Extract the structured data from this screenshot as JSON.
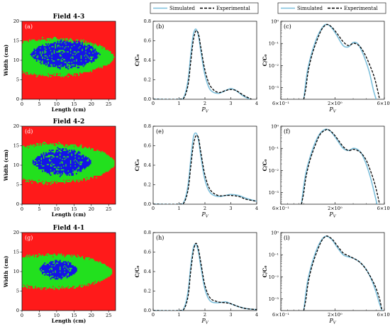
{
  "legend": {
    "simulated": "Simulated",
    "experimental": "Experimental",
    "colors": {
      "simulated": "#7ec0dc",
      "experimental": "#000000"
    }
  },
  "chart_data": [
    {
      "type": "heatmap",
      "panel": "(a)",
      "title": "Field 4-3",
      "xlabel": "Length (cm)",
      "ylabel": "Width (cm)",
      "xlim": [
        0,
        27
      ],
      "ylim": [
        0,
        20
      ],
      "xticks": [
        "0",
        "5",
        "10",
        "15",
        "20",
        "25"
      ],
      "yticks": [
        "0",
        "5",
        "10",
        "15",
        "20"
      ],
      "colors": {
        "background": "#ff1a1a",
        "outer": "#22e01e",
        "core": "#1414e8"
      },
      "outer_region": {
        "x_start": 0,
        "x_end": 26.5,
        "center": 10.8,
        "half_width": 4.6
      },
      "core_region": {
        "x_start": 2.5,
        "x_end": 22.5,
        "center": 11.5,
        "half_width": 3.2
      }
    },
    {
      "type": "line",
      "panel": "(b)",
      "xlabel": "P_V",
      "ylabel": "C/C₀",
      "xlim": [
        0,
        4
      ],
      "ylim": [
        0,
        0.8
      ],
      "xticks": [
        "0",
        "1",
        "2",
        "3",
        "4"
      ],
      "yticks": [
        "0.0",
        "0.2",
        "0.4",
        "0.6",
        "0.8"
      ],
      "series": [
        {
          "name": "Simulated",
          "x": [
            0,
            1.0,
            1.2,
            1.35,
            1.45,
            1.55,
            1.65,
            1.75,
            1.85,
            2.0,
            2.2,
            2.5,
            2.8,
            3.0,
            3.2,
            3.5,
            3.75
          ],
          "y": [
            0,
            0,
            0.03,
            0.2,
            0.45,
            0.66,
            0.72,
            0.65,
            0.48,
            0.25,
            0.1,
            0.06,
            0.09,
            0.11,
            0.09,
            0.03,
            0.0
          ]
        },
        {
          "name": "Experimental",
          "x": [
            0,
            1.0,
            1.2,
            1.35,
            1.45,
            1.55,
            1.65,
            1.75,
            1.85,
            2.0,
            2.2,
            2.5,
            2.8,
            3.0,
            3.2,
            3.5,
            3.8
          ],
          "y": [
            0,
            0,
            0.02,
            0.15,
            0.38,
            0.6,
            0.7,
            0.67,
            0.52,
            0.3,
            0.14,
            0.07,
            0.09,
            0.1,
            0.09,
            0.04,
            0.0
          ]
        }
      ]
    },
    {
      "type": "line",
      "panel": "(c)",
      "xlabel": "P_V",
      "ylabel": "C/C₀",
      "yscale": "log",
      "xlim": [
        0.6,
        6
      ],
      "ylim": [
        0.0003,
        1
      ],
      "xtick_labels": [
        "6×10⁻¹",
        "2×10⁰",
        "6×10⁰"
      ],
      "ytick_labels": [
        "10⁻³",
        "10⁻²",
        "10⁻¹",
        "10⁰"
      ],
      "series": [
        {
          "name": "Simulated",
          "x": [
            1.0,
            1.05,
            1.1,
            1.2,
            1.35,
            1.5,
            1.62,
            1.75,
            1.9,
            2.1,
            2.4,
            2.7,
            3.0,
            3.3,
            3.6,
            3.9,
            4.3,
            4.7,
            5.0
          ],
          "y": [
            0.0003,
            0.002,
            0.008,
            0.04,
            0.2,
            0.5,
            0.72,
            0.66,
            0.45,
            0.22,
            0.08,
            0.07,
            0.11,
            0.1,
            0.05,
            0.02,
            0.005,
            0.0008,
            0.0002
          ]
        },
        {
          "name": "Experimental",
          "x": [
            1.0,
            1.05,
            1.1,
            1.2,
            1.35,
            1.5,
            1.65,
            1.75,
            1.9,
            2.1,
            2.4,
            2.7,
            3.0,
            3.3,
            3.6,
            4.0,
            4.4,
            4.8,
            5.1,
            5.4
          ],
          "y": [
            0.0003,
            0.001,
            0.005,
            0.03,
            0.15,
            0.45,
            0.7,
            0.68,
            0.5,
            0.28,
            0.12,
            0.08,
            0.1,
            0.09,
            0.06,
            0.025,
            0.009,
            0.003,
            0.001,
            0.0003
          ]
        }
      ]
    },
    {
      "type": "heatmap",
      "panel": "(d)",
      "title": "Field 4-2",
      "xlabel": "Length (cm)",
      "ylabel": "Width (cm)",
      "xlim": [
        0,
        27
      ],
      "ylim": [
        0,
        20
      ],
      "xticks": [
        "0",
        "5",
        "10",
        "15",
        "20",
        "25"
      ],
      "yticks": [
        "0",
        "5",
        "10",
        "15",
        "20"
      ],
      "colors": {
        "background": "#ff1a1a",
        "outer": "#22e01e",
        "core": "#1414e8"
      },
      "outer_region": {
        "x_start": 0,
        "x_end": 26.8,
        "center": 10.5,
        "half_width": 4.8
      },
      "core_region": {
        "x_start": 3.0,
        "x_end": 20.0,
        "center": 10.8,
        "half_width": 3.1
      }
    },
    {
      "type": "line",
      "panel": "(e)",
      "xlabel": "P_V",
      "ylabel": "C/C₀",
      "xlim": [
        0,
        4
      ],
      "ylim": [
        0,
        0.8
      ],
      "xticks": [
        "0",
        "1",
        "2",
        "3",
        "4"
      ],
      "yticks": [
        "0.0",
        "0.2",
        "0.4",
        "0.6",
        "0.8"
      ],
      "series": [
        {
          "name": "Simulated",
          "x": [
            0,
            1.0,
            1.2,
            1.35,
            1.45,
            1.55,
            1.65,
            1.75,
            1.85,
            2.0,
            2.2,
            2.5,
            2.8,
            3.0,
            3.3,
            3.6,
            4.0
          ],
          "y": [
            0,
            0,
            0.03,
            0.2,
            0.45,
            0.68,
            0.73,
            0.66,
            0.48,
            0.25,
            0.12,
            0.08,
            0.09,
            0.1,
            0.09,
            0.06,
            0.03
          ]
        },
        {
          "name": "Experimental",
          "x": [
            0,
            1.0,
            1.2,
            1.35,
            1.45,
            1.55,
            1.65,
            1.75,
            1.85,
            2.0,
            2.2,
            2.5,
            2.8,
            3.0,
            3.3,
            3.6,
            4.0
          ],
          "y": [
            0,
            0,
            0.02,
            0.15,
            0.38,
            0.6,
            0.7,
            0.68,
            0.52,
            0.3,
            0.15,
            0.09,
            0.09,
            0.09,
            0.08,
            0.05,
            0.03
          ]
        }
      ]
    },
    {
      "type": "line",
      "panel": "(f)",
      "xlabel": "P_V",
      "ylabel": "C/C₀",
      "yscale": "log",
      "xlim": [
        0.6,
        6
      ],
      "ylim": [
        0.0003,
        1
      ],
      "xtick_labels": [
        "6×10⁻¹",
        "2×10⁰",
        "6×10⁰"
      ],
      "ytick_labels": [
        "10⁻³",
        "10⁻²",
        "10⁻¹",
        "10⁰"
      ],
      "series": [
        {
          "name": "Simulated",
          "x": [
            0.95,
            1.0,
            1.05,
            1.15,
            1.3,
            1.45,
            1.62,
            1.75,
            1.9,
            2.1,
            2.4,
            2.7,
            3.0,
            3.3,
            3.6,
            4.0,
            4.4,
            4.8,
            5.1
          ],
          "y": [
            0.0003,
            0.002,
            0.008,
            0.04,
            0.2,
            0.5,
            0.73,
            0.66,
            0.46,
            0.24,
            0.1,
            0.08,
            0.1,
            0.09,
            0.06,
            0.02,
            0.005,
            0.001,
            0.0003
          ]
        },
        {
          "name": "Experimental",
          "x": [
            0.95,
            1.0,
            1.05,
            1.15,
            1.3,
            1.45,
            1.65,
            1.75,
            1.9,
            2.1,
            2.4,
            2.7,
            3.0,
            3.3,
            3.6,
            4.0,
            4.4,
            4.8,
            5.1,
            5.4
          ],
          "y": [
            0.0003,
            0.001,
            0.005,
            0.03,
            0.15,
            0.45,
            0.7,
            0.68,
            0.5,
            0.28,
            0.12,
            0.08,
            0.09,
            0.08,
            0.06,
            0.03,
            0.01,
            0.003,
            0.001,
            0.0003
          ]
        }
      ]
    },
    {
      "type": "heatmap",
      "panel": "(g)",
      "title": "Field 4-1",
      "xlabel": "Length (cm)",
      "ylabel": "Width (cm)",
      "xlim": [
        0,
        27
      ],
      "ylim": [
        0,
        20
      ],
      "xticks": [
        "0",
        "5",
        "10",
        "15",
        "20",
        "25"
      ],
      "yticks": [
        "0",
        "5",
        "10",
        "15",
        "20"
      ],
      "colors": {
        "background": "#ff1a1a",
        "outer": "#22e01e",
        "core": "#1414e8"
      },
      "outer_region": {
        "x_start": 0,
        "x_end": 26.0,
        "center": 10.0,
        "half_width": 4.2
      },
      "core_region": {
        "x_start": 5.0,
        "x_end": 16.0,
        "center": 10.5,
        "half_width": 2.2
      }
    },
    {
      "type": "line",
      "panel": "(h)",
      "xlabel": "P_V",
      "ylabel": "C/C₀",
      "xlim": [
        0,
        4
      ],
      "ylim": [
        0,
        0.8
      ],
      "xticks": [
        "0",
        "1",
        "2",
        "3",
        "4"
      ],
      "yticks": [
        "0.0",
        "0.2",
        "0.4",
        "0.6",
        "0.8"
      ],
      "series": [
        {
          "name": "Simulated",
          "x": [
            0,
            1.0,
            1.2,
            1.35,
            1.45,
            1.55,
            1.65,
            1.75,
            1.85,
            2.0,
            2.2,
            2.5,
            2.8,
            3.0,
            3.3,
            3.6,
            4.0
          ],
          "y": [
            0,
            0,
            0.03,
            0.2,
            0.45,
            0.64,
            0.68,
            0.6,
            0.44,
            0.22,
            0.1,
            0.08,
            0.09,
            0.07,
            0.04,
            0.02,
            0.01
          ]
        },
        {
          "name": "Experimental",
          "x": [
            0,
            1.0,
            1.2,
            1.35,
            1.45,
            1.55,
            1.65,
            1.75,
            1.85,
            2.0,
            2.2,
            2.5,
            2.8,
            3.0,
            3.3,
            3.6,
            4.0
          ],
          "y": [
            0,
            0,
            0.02,
            0.15,
            0.4,
            0.6,
            0.69,
            0.63,
            0.48,
            0.26,
            0.13,
            0.09,
            0.08,
            0.07,
            0.04,
            0.02,
            0.01
          ]
        }
      ]
    },
    {
      "type": "line",
      "panel": "(i)",
      "xlabel": "P_V",
      "ylabel": "C/C₀",
      "yscale": "log",
      "xlim": [
        0.6,
        6
      ],
      "ylim": [
        0.0003,
        1
      ],
      "xtick_labels": [
        "6×10⁻¹",
        "2×10⁰",
        "6×10⁰"
      ],
      "ytick_labels": [
        "10⁻³",
        "10⁻²",
        "10⁻¹",
        "10⁰"
      ],
      "series": [
        {
          "name": "Simulated",
          "x": [
            1.0,
            1.05,
            1.1,
            1.2,
            1.35,
            1.5,
            1.62,
            1.75,
            1.9,
            2.1,
            2.4,
            2.7,
            3.0,
            3.4,
            3.8,
            4.2,
            4.6,
            5.0,
            5.4,
            5.7
          ],
          "y": [
            0.0003,
            0.002,
            0.008,
            0.04,
            0.2,
            0.5,
            0.68,
            0.62,
            0.44,
            0.22,
            0.1,
            0.08,
            0.07,
            0.05,
            0.03,
            0.015,
            0.006,
            0.002,
            0.0006,
            0.0003
          ]
        },
        {
          "name": "Experimental",
          "x": [
            1.0,
            1.05,
            1.1,
            1.2,
            1.35,
            1.5,
            1.65,
            1.75,
            1.9,
            2.1,
            2.4,
            2.7,
            3.0,
            3.4,
            3.8,
            4.2,
            4.6,
            5.0,
            5.4,
            5.7
          ],
          "y": [
            0.0003,
            0.001,
            0.005,
            0.03,
            0.15,
            0.45,
            0.69,
            0.64,
            0.48,
            0.26,
            0.12,
            0.09,
            0.07,
            0.05,
            0.03,
            0.015,
            0.007,
            0.003,
            0.001,
            0.0003
          ]
        }
      ]
    }
  ]
}
